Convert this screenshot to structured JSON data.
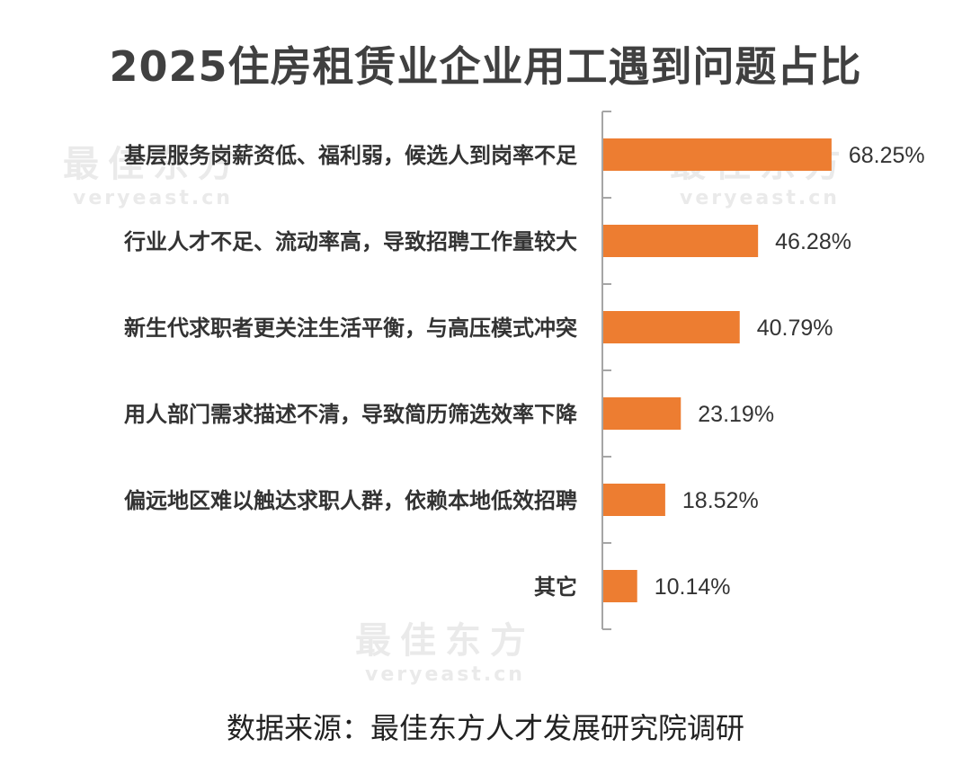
{
  "watermark": {
    "brand": "最佳东方",
    "domain": "veryeast.cn"
  },
  "source": "数据来源：最佳东方人才发展研究院调研",
  "chart_data": {
    "type": "bar",
    "orientation": "horizontal",
    "title": "2025住房租赁业企业用工遇到问题占比",
    "categories": [
      "基层服务岗薪资低、福利弱，候选人到岗率不足",
      "行业人才不足、流动率高，导致招聘工作量较大",
      "新生代求职者更关注生活平衡，与高压模式冲突",
      "用人部门需求描述不清，导致简历筛选效率下降",
      "偏远地区难以触达求职人群，依赖本地低效招聘",
      "其它"
    ],
    "values": [
      68.25,
      46.28,
      40.79,
      23.19,
      18.52,
      10.14
    ],
    "value_labels": [
      "68.25%",
      "46.28%",
      "40.79%",
      "23.19%",
      "18.52%",
      "10.14%"
    ],
    "unit": "%",
    "xlim": [
      0,
      100
    ],
    "grid": false,
    "legend": "none",
    "colors": {
      "bar": "#ED7D31",
      "axis": "#A6A6A6",
      "text": "#333333"
    }
  }
}
